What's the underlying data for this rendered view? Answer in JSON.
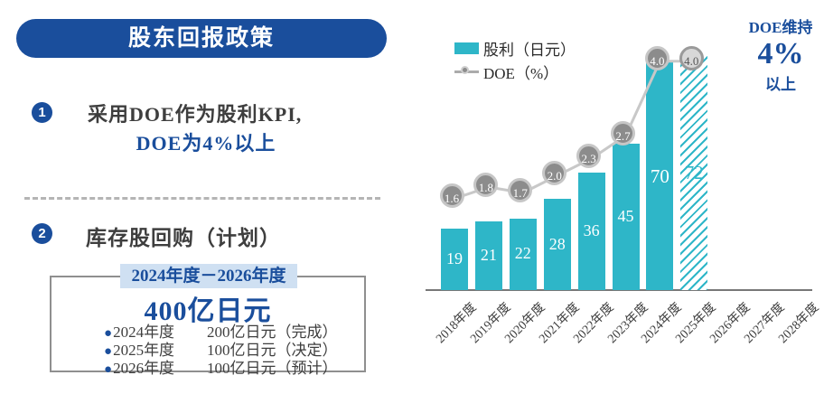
{
  "header": {
    "title": "股东回报政策"
  },
  "point1": {
    "number": "1",
    "line1": "采用DOE作为股利KPI,",
    "line2": "DOE为4%以上"
  },
  "point2": {
    "number": "2",
    "title": "库存股回购（计划）"
  },
  "buyback_box": {
    "period": "2024年度－2026年度",
    "total": "400亿日元",
    "bullet": "●",
    "items": [
      {
        "year": "2024年度",
        "amount": "200亿日元（完成）"
      },
      {
        "year": "2025年度",
        "amount": "100亿日元（决定）"
      },
      {
        "year": "2026年度",
        "amount": "100亿日元（预计）"
      }
    ]
  },
  "chart": {
    "legend": [
      {
        "label": "股利（日元）"
      },
      {
        "label": "DOE（%）"
      }
    ],
    "annotation": {
      "line1": "DOE维持",
      "value": "4%",
      "line2": "以上"
    }
  },
  "chart_data": {
    "type": "bar",
    "categories": [
      "2018年度",
      "2019年度",
      "2020年度",
      "2021年度",
      "2022年度",
      "2023年度",
      "2024年度",
      "2025年度",
      "2026年度",
      "2027年度",
      "2028年度"
    ],
    "series": [
      {
        "name": "股利（日元）",
        "type": "bar",
        "values": [
          19,
          21,
          22,
          28,
          36,
          45,
          70,
          72,
          null,
          null,
          null
        ],
        "forecast_indices": [
          7
        ]
      },
      {
        "name": "DOE（%）",
        "type": "line",
        "values": [
          1.6,
          1.8,
          1.7,
          2.0,
          2.3,
          2.7,
          4.0,
          4.0,
          null,
          null,
          null
        ],
        "muted_indices": [
          7
        ]
      }
    ],
    "ylim": [
      0,
      80
    ],
    "y2lim": [
      0,
      5
    ],
    "legend_position": "top-left",
    "grid": false,
    "title": "",
    "xlabel": "",
    "ylabel": ""
  },
  "colors": {
    "accent_blue": "#1a4e9c",
    "teal": "#2eb6c8",
    "circle_fill": "#8c8c8c",
    "circle_ring": "#c6c6c6",
    "muted_circle_fill": "#d8d8d8",
    "muted_circle_ring": "#9a9a9a",
    "line_gray": "#c8c8c8",
    "tab_bg": "#cfe0f2"
  }
}
